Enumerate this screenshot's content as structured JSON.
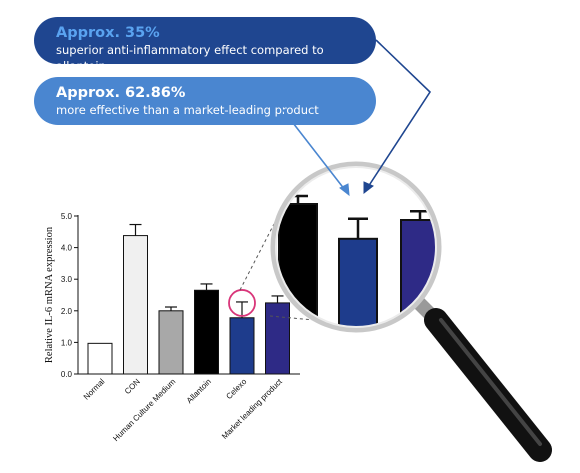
{
  "callouts": [
    {
      "headline": "Approx. 35%",
      "text": "superior anti-inflammatory effect compared to allantoin",
      "color": "#1f4690"
    },
    {
      "headline": "Approx. 62.86%",
      "text": "more effective than a market-leading product",
      "color": "#4a86d0"
    }
  ],
  "chart_data": {
    "type": "bar",
    "ylabel": "Relative IL-6 mRNA expression",
    "xlabel": "",
    "ylim": [
      0,
      5.0
    ],
    "yticks": [
      "0.0",
      "1.0",
      "2.0",
      "3.0",
      "4.0",
      "5.0"
    ],
    "categories": [
      "Normal",
      "CON",
      "Human Culture Medium",
      "Allantoin",
      "Celexo",
      "Market leading product"
    ],
    "values": [
      0.97,
      4.38,
      2.0,
      2.65,
      1.78,
      2.25
    ],
    "errors": [
      0,
      0.35,
      0.12,
      0.2,
      0.5,
      0.22
    ],
    "colors": [
      "#ffffff",
      "#f0f0f0",
      "#a8a8a8",
      "#000000",
      "#1e3c8c",
      "#2e2a86"
    ],
    "highlight": "Celexo",
    "highlight_color": "#d9367a",
    "magnified": [
      "Allantoin",
      "Celexo",
      "Market leading product"
    ]
  }
}
